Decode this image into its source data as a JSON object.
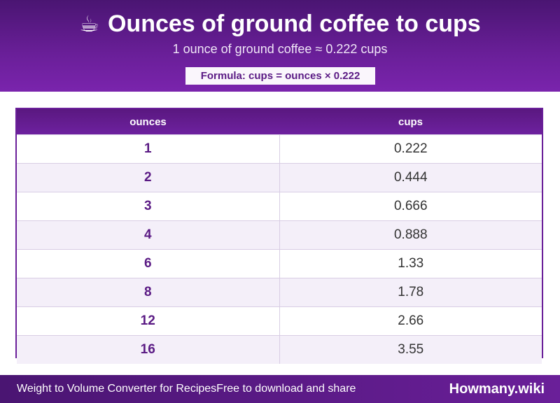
{
  "header": {
    "icon": "☕",
    "title": "Ounces of ground coffee to cups",
    "subtitle": "1 ounce of ground coffee ≈ 0.222 cups",
    "formula": "Formula: cups = ounces × 0.222"
  },
  "table": {
    "columns": [
      "ounces",
      "cups"
    ],
    "rows": [
      {
        "ounces": "1",
        "cups": "0.222"
      },
      {
        "ounces": "2",
        "cups": "0.444"
      },
      {
        "ounces": "3",
        "cups": "0.666"
      },
      {
        "ounces": "4",
        "cups": "0.888"
      },
      {
        "ounces": "6",
        "cups": "1.33"
      },
      {
        "ounces": "8",
        "cups": "1.78"
      },
      {
        "ounces": "12",
        "cups": "2.66"
      },
      {
        "ounces": "16",
        "cups": "3.55"
      }
    ]
  },
  "footer": {
    "left_title": "Weight to Volume Converter for Recipes",
    "left_note": "Free to download and share",
    "brand": "Howmany.wiki"
  },
  "colors": {
    "primary": "#6a1f99",
    "dark": "#4a1572",
    "row_alt": "#f4eff9"
  }
}
